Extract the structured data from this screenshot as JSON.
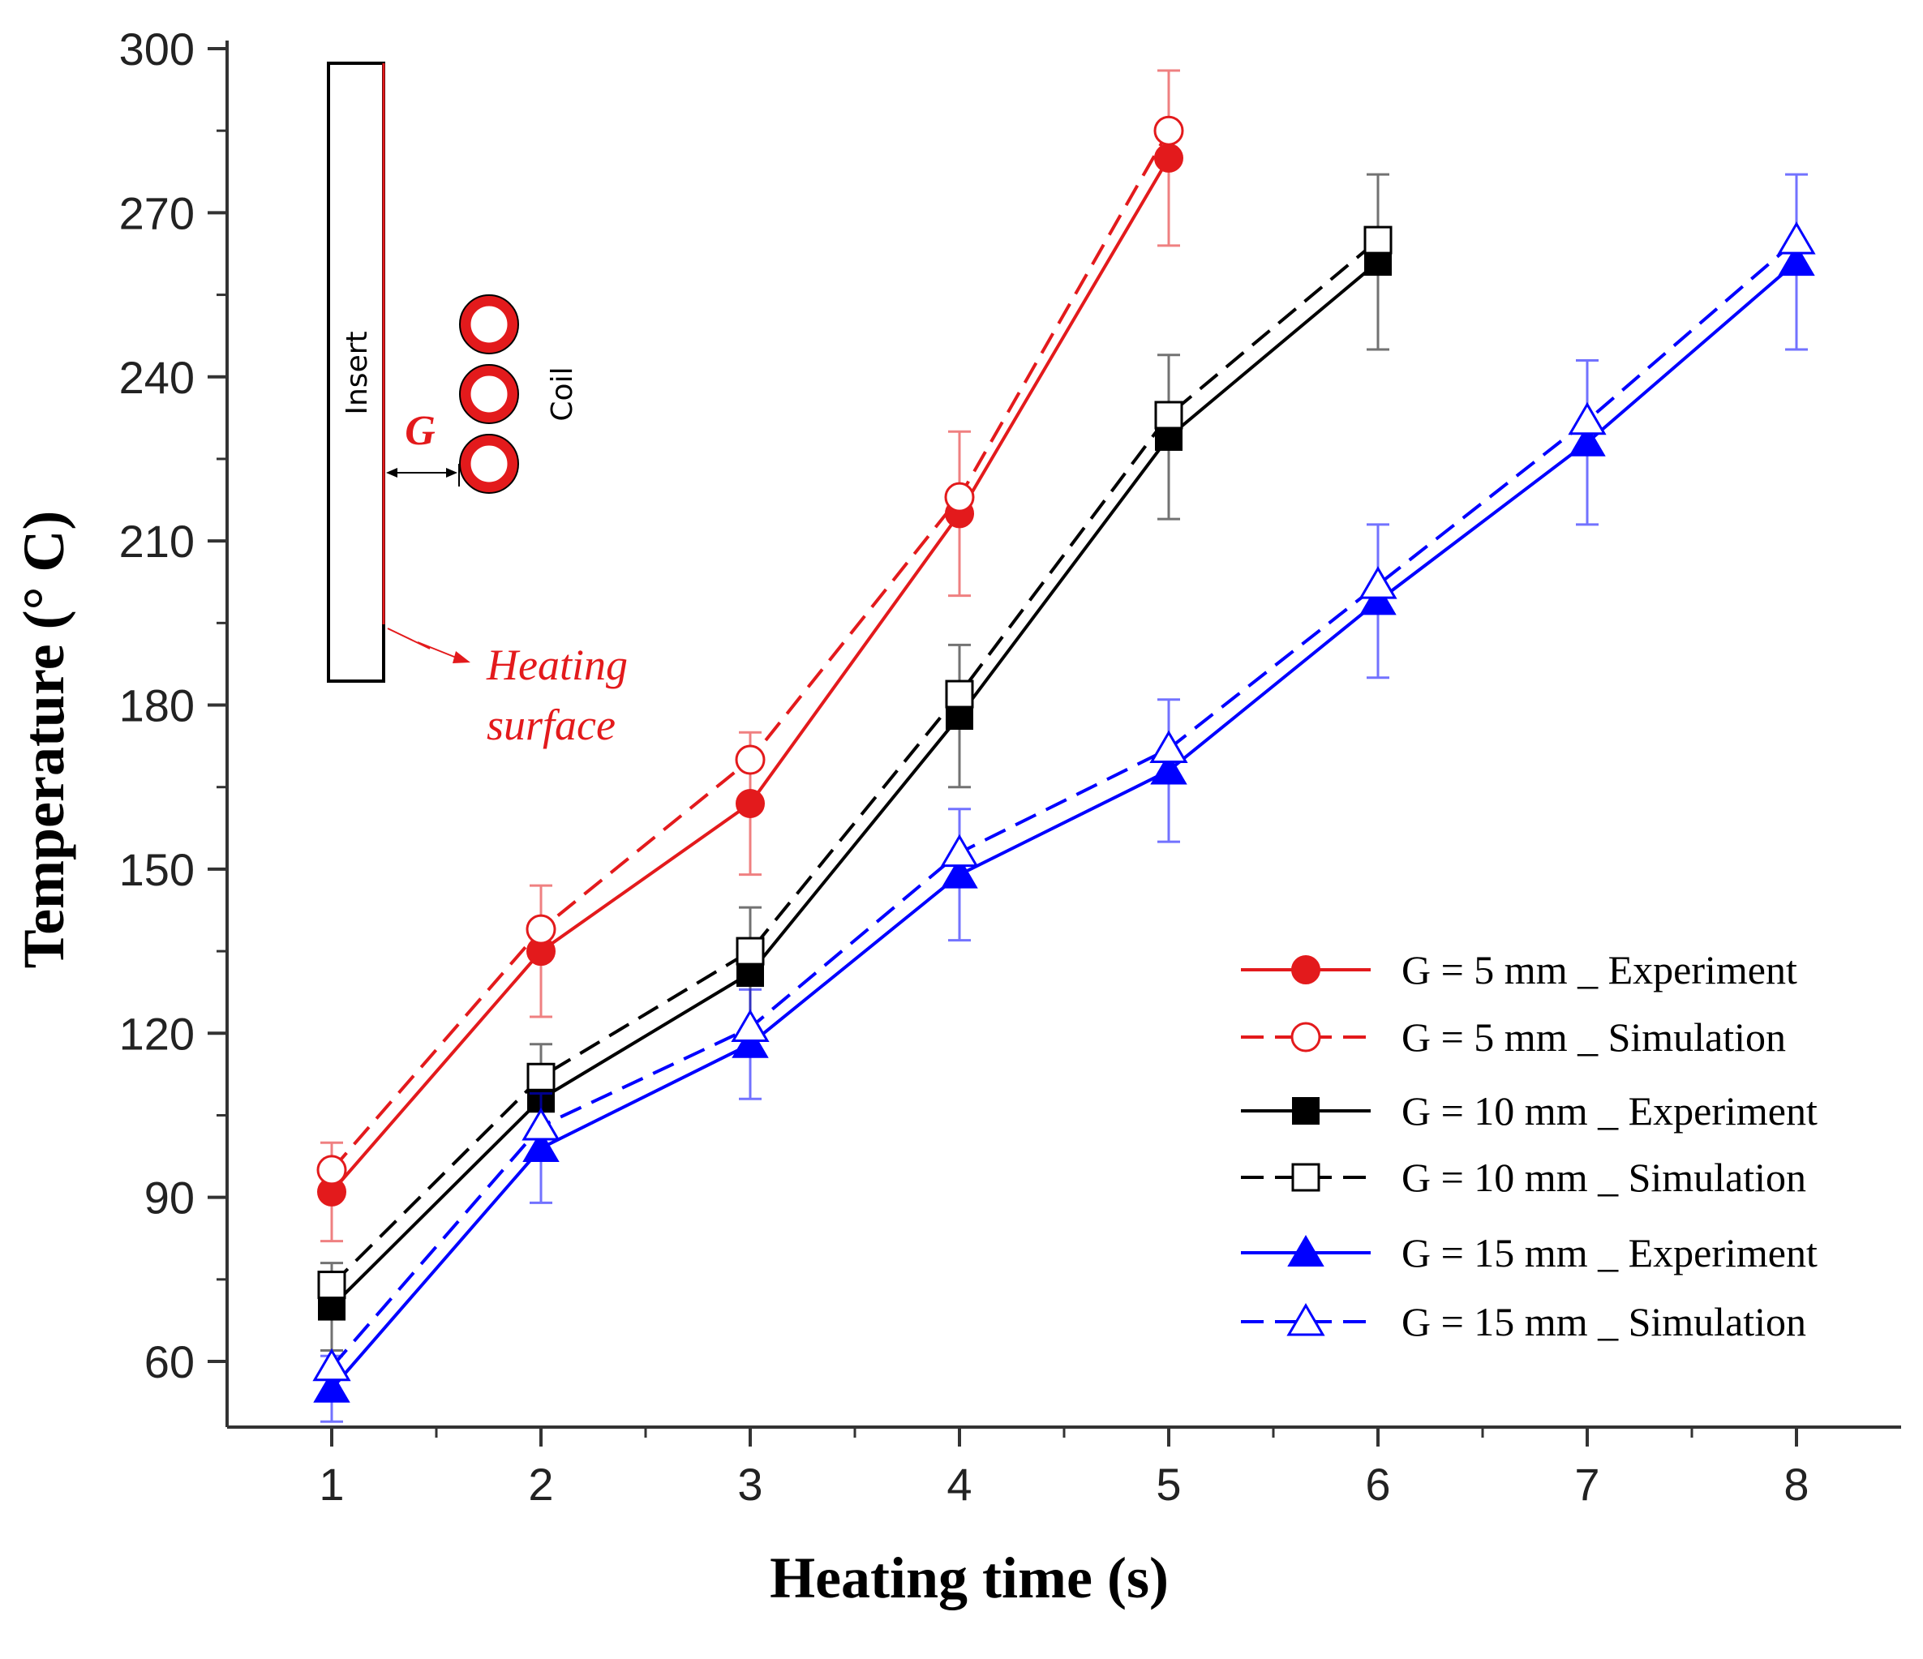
{
  "chart_data": {
    "type": "line",
    "title": "",
    "xlabel": "Heating time (s)",
    "ylabel": "Temperature (° C)",
    "xlim": [
      0.5,
      8.5
    ],
    "ylim": [
      48,
      300
    ],
    "x_ticks": [
      1,
      2,
      3,
      4,
      5,
      6,
      7,
      8
    ],
    "y_ticks": [
      60,
      90,
      120,
      150,
      180,
      210,
      240,
      270,
      300
    ],
    "grid": false,
    "legend_position": "bottom-right",
    "series": [
      {
        "name": "G =  5 mm _ Experiment",
        "color": "#e31a1c",
        "dash": "solid",
        "marker": "circle",
        "filled": true,
        "x": [
          1,
          2,
          3,
          4,
          5
        ],
        "values": [
          91,
          135,
          162,
          215,
          280
        ],
        "err": [
          9,
          12,
          13,
          15,
          16
        ]
      },
      {
        "name": "G =  5 mm _ Simulation",
        "color": "#e31a1c",
        "dash": "dashed",
        "marker": "circle",
        "filled": false,
        "x": [
          1,
          2,
          3,
          4,
          5
        ],
        "values": [
          95,
          139,
          170,
          218,
          285
        ]
      },
      {
        "name": "G = 10 mm _ Experiment",
        "color": "#000000",
        "dash": "solid",
        "marker": "square",
        "filled": true,
        "x": [
          1,
          2,
          3,
          4,
          5,
          6
        ],
        "values": [
          70,
          108,
          131,
          178,
          229,
          261
        ],
        "err": [
          8,
          10,
          12,
          13,
          15,
          16
        ]
      },
      {
        "name": "G = 10 mm _ Simulation",
        "color": "#000000",
        "dash": "dashed",
        "marker": "square",
        "filled": false,
        "x": [
          1,
          2,
          3,
          4,
          5,
          6
        ],
        "values": [
          74,
          112,
          135,
          182,
          233,
          265
        ]
      },
      {
        "name": "G = 15 mm _ Experiment",
        "color": "#0000ff",
        "dash": "solid",
        "marker": "triangle",
        "filled": true,
        "x": [
          1,
          2,
          3,
          4,
          5,
          6,
          7,
          8
        ],
        "values": [
          55,
          99,
          118,
          149,
          168,
          199,
          228,
          261
        ],
        "err": [
          6,
          10,
          10,
          12,
          13,
          14,
          15,
          16
        ]
      },
      {
        "name": "G = 15 mm _ Simulation",
        "color": "#0000ff",
        "dash": "dashed",
        "marker": "triangle",
        "filled": false,
        "x": [
          1,
          2,
          3,
          4,
          5,
          6,
          7,
          8
        ],
        "values": [
          59,
          103,
          121,
          153,
          172,
          202,
          232,
          265
        ]
      }
    ]
  },
  "inset": {
    "insert_label": "Insert",
    "coil_label": "Coil",
    "gap_label": "G",
    "heating_line1": "Heating",
    "heating_line2": "surface"
  }
}
